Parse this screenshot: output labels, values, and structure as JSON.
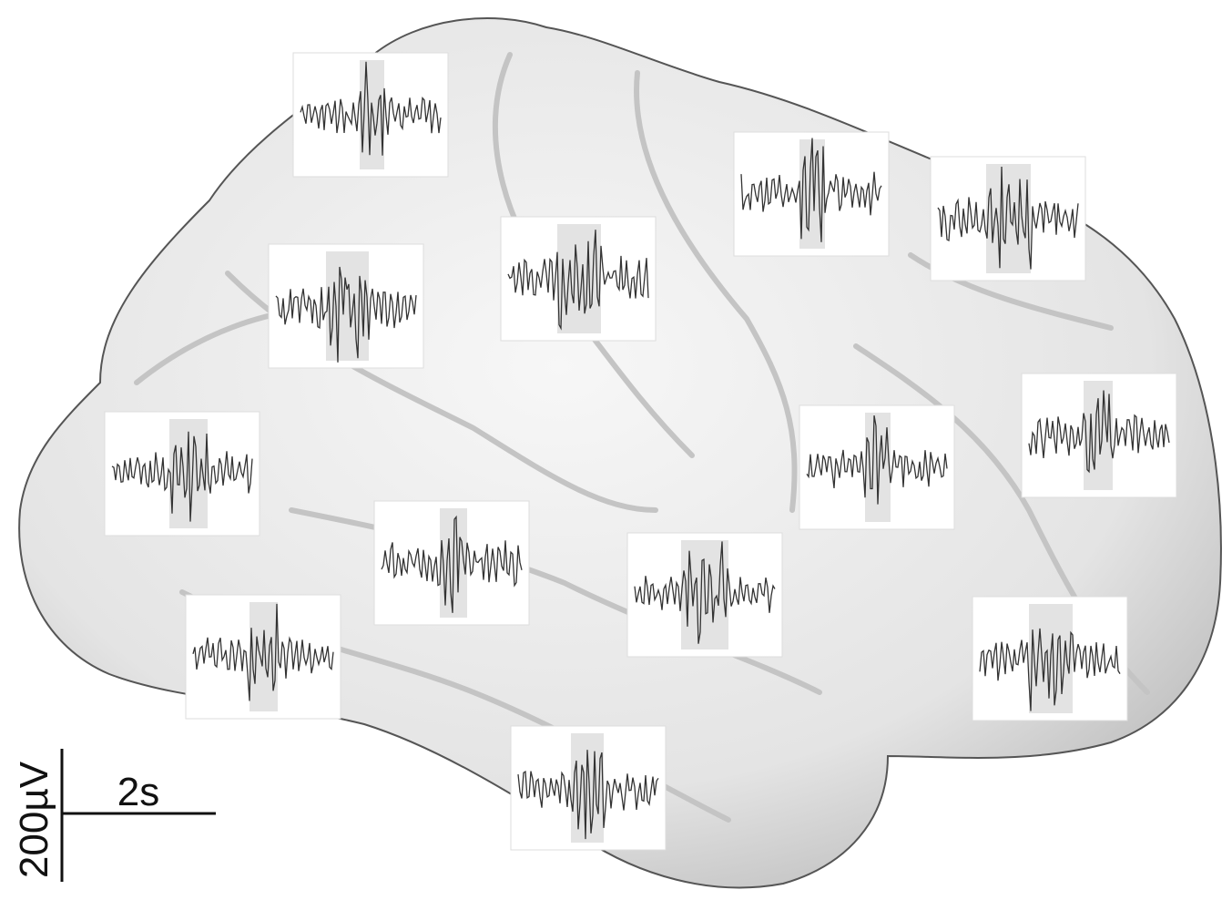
{
  "scale_bar": {
    "voltage": "200µV",
    "time": "2s"
  }
}
